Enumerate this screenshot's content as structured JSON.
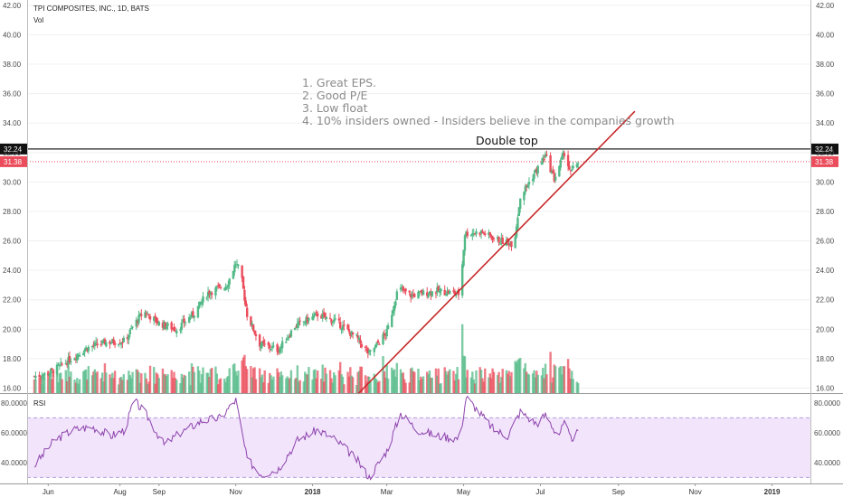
{
  "header": {
    "title": "TPI COMPOSITES, INC., 1D, BATS",
    "vol_label": "Vol",
    "rsi_label": "RSI"
  },
  "notes": [
    "1. Great EPS.",
    "2. Good P/E",
    "3. Low float",
    "4. 10% insiders owned - Insiders believe in the companies growth"
  ],
  "annotation": "Double top",
  "colors": {
    "up": "#53b987",
    "down": "#eb4d5c",
    "trendline": "#c62828",
    "resistance_line": "#222222",
    "last_price_line": "#eb4d5c",
    "rsi_line": "#8e44ad",
    "rsi_band": "#f1e4fb"
  },
  "chart_data": [
    {
      "type": "candlestick",
      "title": "TPI COMPOSITES, INC., 1D, BATS",
      "xlabel": "",
      "ylabel": "",
      "ylim": [
        15.6,
        42.3
      ],
      "x_tick_labels": [
        "Jun",
        "Aug",
        "Sep",
        "Nov",
        "2018",
        "Mar",
        "May",
        "Jul",
        "Sep",
        "Nov",
        "2019"
      ],
      "y_ticks": [
        16,
        18,
        20,
        22,
        24,
        26,
        28,
        30,
        32,
        34,
        36,
        38,
        40,
        42
      ],
      "y_tick_labels": [
        "16.00",
        "18.00",
        "20.00",
        "22.00",
        "24.00",
        "26.00",
        "28.00",
        "30.00",
        "32.00",
        "34.00",
        "36.00",
        "38.00",
        "40.00",
        "42.00"
      ],
      "price_path": [
        [
          "2017-05-25",
          16.8
        ],
        [
          "2017-06-05",
          17.0
        ],
        [
          "2017-06-20",
          17.8
        ],
        [
          "2017-07-05",
          18.7
        ],
        [
          "2017-07-20",
          19.1
        ],
        [
          "2017-08-05",
          19.2
        ],
        [
          "2017-08-12",
          20.3
        ],
        [
          "2017-08-20",
          21.2
        ],
        [
          "2017-09-01",
          20.4
        ],
        [
          "2017-09-15",
          20.0
        ],
        [
          "2017-09-28",
          21.0
        ],
        [
          "2017-10-10",
          22.5
        ],
        [
          "2017-10-25",
          23.0
        ],
        [
          "2017-11-01",
          24.5
        ],
        [
          "2017-11-05",
          23.8
        ],
        [
          "2017-11-10",
          21.0
        ],
        [
          "2017-11-20",
          19.0
        ],
        [
          "2017-12-05",
          18.6
        ],
        [
          "2017-12-18",
          20.2
        ],
        [
          "2018-01-05",
          21.0
        ],
        [
          "2018-01-20",
          20.5
        ],
        [
          "2018-02-05",
          19.4
        ],
        [
          "2018-02-15",
          18.3
        ],
        [
          "2018-03-01",
          19.8
        ],
        [
          "2018-03-10",
          22.8
        ],
        [
          "2018-03-20",
          22.3
        ],
        [
          "2018-04-10",
          22.6
        ],
        [
          "2018-04-28",
          22.4
        ],
        [
          "2018-05-02",
          26.5
        ],
        [
          "2018-05-15",
          26.6
        ],
        [
          "2018-05-30",
          26.0
        ],
        [
          "2018-06-10",
          25.8
        ],
        [
          "2018-06-15",
          29.0
        ],
        [
          "2018-06-25",
          30.4
        ],
        [
          "2018-07-05",
          31.8
        ],
        [
          "2018-07-12",
          30.2
        ],
        [
          "2018-07-20",
          32.0
        ],
        [
          "2018-07-25",
          30.6
        ],
        [
          "2018-07-31",
          31.4
        ]
      ],
      "last_price": 31.38,
      "horizontal_line": 32.24,
      "annotation": "Double top",
      "trendline": [
        [
          "2018-02-06",
          15.6
        ],
        [
          "2018-09-14",
          34.8
        ]
      ]
    },
    {
      "type": "bar",
      "title": "Vol",
      "values_note": "daily volume bars colored by candle direction"
    },
    {
      "type": "line",
      "title": "RSI",
      "ylim": [
        26,
        86
      ],
      "y_ticks": [
        40,
        60,
        80
      ],
      "y_tick_labels": [
        "40.0000",
        "60.0000",
        "80.0000"
      ],
      "band": [
        30,
        70
      ],
      "rsi_path": [
        [
          "2017-05-25",
          38
        ],
        [
          "2017-06-10",
          55
        ],
        [
          "2017-06-25",
          62
        ],
        [
          "2017-07-10",
          64
        ],
        [
          "2017-07-25",
          58
        ],
        [
          "2017-08-05",
          62
        ],
        [
          "2017-08-12",
          82
        ],
        [
          "2017-08-22",
          72
        ],
        [
          "2017-09-05",
          52
        ],
        [
          "2017-09-18",
          60
        ],
        [
          "2017-10-05",
          68
        ],
        [
          "2017-10-20",
          70
        ],
        [
          "2017-11-01",
          82
        ],
        [
          "2017-11-10",
          42
        ],
        [
          "2017-11-22",
          32
        ],
        [
          "2017-12-05",
          36
        ],
        [
          "2017-12-20",
          55
        ],
        [
          "2018-01-05",
          62
        ],
        [
          "2018-01-20",
          55
        ],
        [
          "2018-02-05",
          42
        ],
        [
          "2018-02-15",
          30
        ],
        [
          "2018-03-01",
          48
        ],
        [
          "2018-03-12",
          73
        ],
        [
          "2018-03-25",
          62
        ],
        [
          "2018-04-10",
          58
        ],
        [
          "2018-04-28",
          56
        ],
        [
          "2018-05-03",
          84
        ],
        [
          "2018-05-12",
          75
        ],
        [
          "2018-05-25",
          62
        ],
        [
          "2018-06-05",
          58
        ],
        [
          "2018-06-15",
          74
        ],
        [
          "2018-06-28",
          66
        ],
        [
          "2018-07-05",
          72
        ],
        [
          "2018-07-15",
          58
        ],
        [
          "2018-07-20",
          66
        ],
        [
          "2018-07-25",
          56
        ],
        [
          "2018-07-31",
          60
        ]
      ]
    }
  ]
}
